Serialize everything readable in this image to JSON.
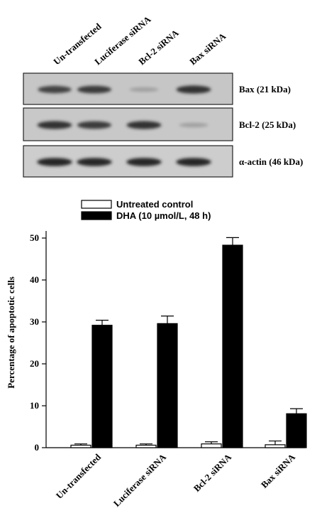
{
  "western_blot": {
    "lanes": [
      "Un-transfected",
      "Luciferase siRNA",
      "Bcl-2 siRNA",
      "Bax siRNA"
    ],
    "rows": [
      {
        "label": "Bax (21 kDa)",
        "band_intensity": [
          0.8,
          0.85,
          0.3,
          0.9
        ]
      },
      {
        "label": "Bcl-2 (25 kDa)",
        "band_intensity": [
          0.9,
          0.85,
          0.9,
          0.3
        ]
      },
      {
        "label": "α-actin (46 kDa)",
        "band_intensity": [
          0.95,
          0.95,
          0.95,
          0.95
        ]
      }
    ]
  },
  "chart_data": {
    "type": "bar",
    "categories": [
      "Un-transfected",
      "Luciferase siRNA",
      "Bcl-2 siRNA",
      "Bax siRNA"
    ],
    "series": [
      {
        "name": "Untreated control",
        "values": [
          0.6,
          0.6,
          0.9,
          0.7
        ],
        "errors": [
          0.3,
          0.3,
          0.5,
          0.9
        ],
        "color": "#ffffff"
      },
      {
        "name": "DHA (10 µmol/L, 48 h)",
        "values": [
          29.2,
          29.6,
          48.3,
          8.1
        ],
        "errors": [
          1.2,
          1.8,
          1.8,
          1.2
        ],
        "color": "#000000"
      }
    ],
    "ylabel": "Percentage of apoptotic cells",
    "ylim": [
      0,
      50
    ],
    "yticks": [
      "0",
      "10",
      "20",
      "30",
      "40",
      "50"
    ],
    "grid": false,
    "legend_position": "top"
  }
}
